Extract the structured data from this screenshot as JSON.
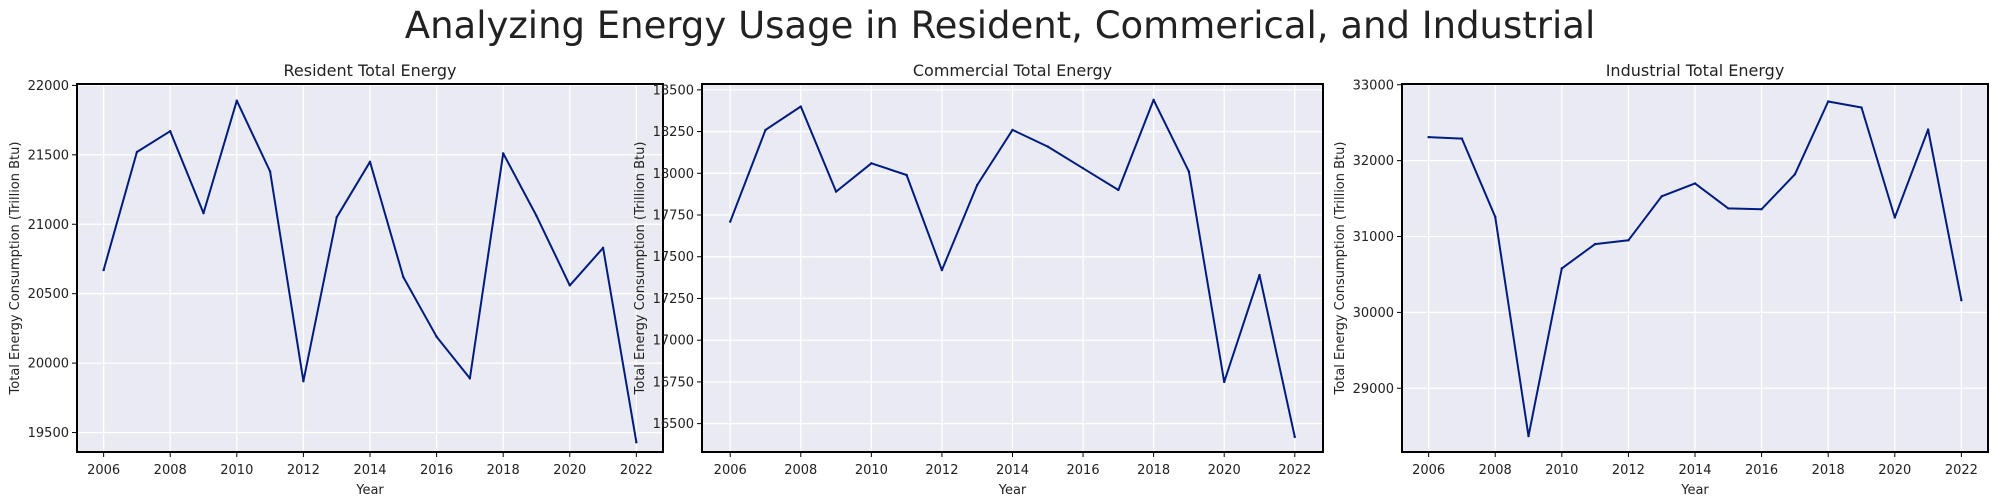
{
  "figure": {
    "title": "Analyzing Energy Usage in Resident, Commerical, and Industrial"
  },
  "style": {
    "background": "#eaeaf2",
    "grid_color": "#ffffff",
    "line_color": "#001c7f"
  },
  "chart_data": [
    {
      "type": "line",
      "title": "Resident Total Energy",
      "xlabel": "Year",
      "ylabel": "Total Energy Consumption (Trillion Btu)",
      "x": [
        2006,
        2007,
        2008,
        2009,
        2010,
        2011,
        2012,
        2013,
        2014,
        2015,
        2016,
        2017,
        2018,
        2019,
        2020,
        2021,
        2022
      ],
      "y": [
        20670,
        21520,
        21670,
        21080,
        21890,
        21380,
        19870,
        21050,
        21450,
        20620,
        20190,
        19890,
        21510,
        21060,
        20560,
        20830,
        19430
      ],
      "xticks": [
        2006,
        2008,
        2010,
        2012,
        2014,
        2016,
        2018,
        2020,
        2022
      ],
      "yticks": [
        19500,
        20000,
        20500,
        21000,
        21500,
        22000
      ],
      "xlim": [
        2005.2,
        2022.8
      ],
      "ylim": [
        19360,
        22010
      ],
      "grid": true
    },
    {
      "type": "line",
      "title": "Commercial Total Energy",
      "xlabel": "Year",
      "ylabel": "Total Energy Consumption (Trillion Btu)",
      "x": [
        2006,
        2007,
        2008,
        2009,
        2010,
        2011,
        2012,
        2013,
        2014,
        2015,
        2016,
        2017,
        2018,
        2019,
        2020,
        2021,
        2022
      ],
      "y": [
        17710,
        18260,
        18400,
        17890,
        18060,
        17990,
        17420,
        17930,
        18260,
        18160,
        18030,
        17900,
        18440,
        18010,
        16750,
        17390,
        16420
      ],
      "xticks": [
        2006,
        2008,
        2010,
        2012,
        2014,
        2016,
        2018,
        2020,
        2022
      ],
      "yticks": [
        16500,
        16750,
        17000,
        17250,
        17500,
        17750,
        18000,
        18250,
        18500
      ],
      "xlim": [
        2005.2,
        2022.8
      ],
      "ylim": [
        16330,
        18535
      ],
      "grid": true
    },
    {
      "type": "line",
      "title": "Industrial Total Energy",
      "xlabel": "Year",
      "ylabel": "Total Energy Consumption (Trillion Btu)",
      "x": [
        2006,
        2007,
        2008,
        2009,
        2010,
        2011,
        2012,
        2013,
        2014,
        2015,
        2016,
        2017,
        2018,
        2019,
        2020,
        2021,
        2022
      ],
      "y": [
        32310,
        32290,
        31260,
        28370,
        30580,
        30900,
        30950,
        31530,
        31700,
        31370,
        31360,
        31820,
        32780,
        32700,
        31250,
        32410,
        30160
      ],
      "xticks": [
        2006,
        2008,
        2010,
        2012,
        2014,
        2016,
        2018,
        2020,
        2022
      ],
      "yticks": [
        29000,
        30000,
        31000,
        32000,
        33000
      ],
      "xlim": [
        2005.2,
        2022.8
      ],
      "ylim": [
        28160,
        33010
      ],
      "grid": true
    }
  ]
}
